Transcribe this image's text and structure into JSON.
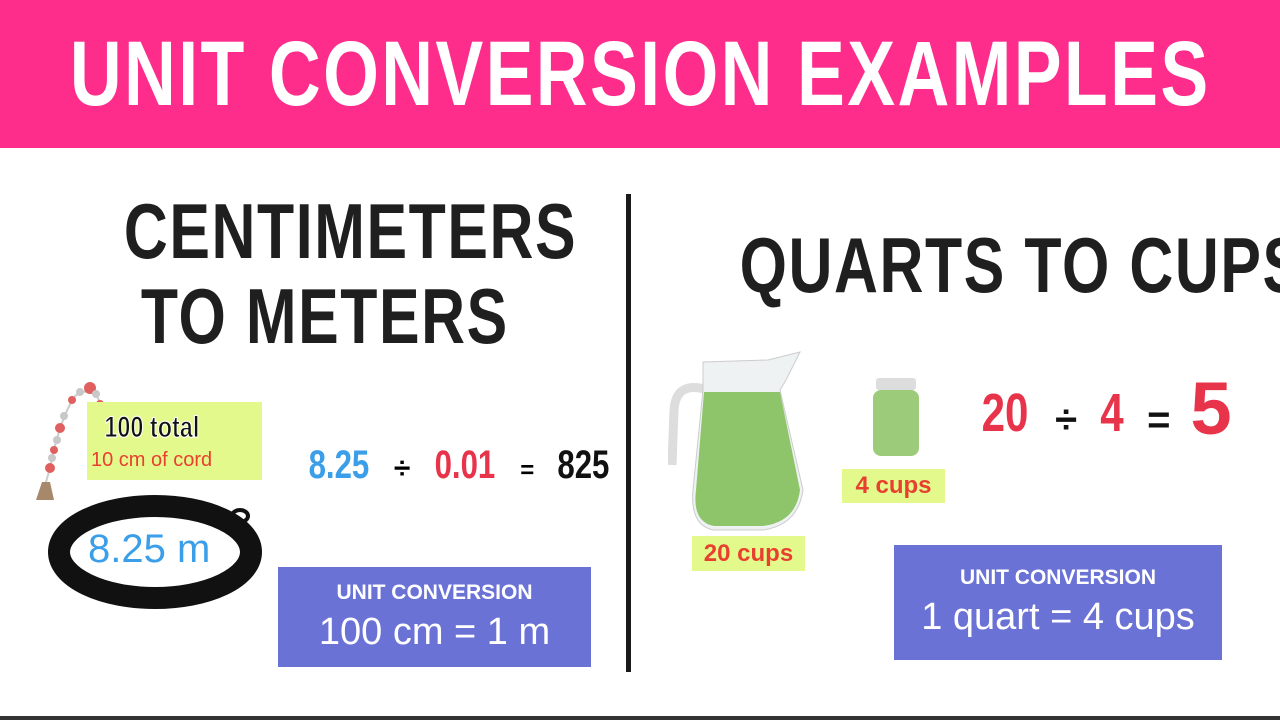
{
  "banner": {
    "title": "UNIT CONVERSION EXAMPLES",
    "color": "#fe2d8c"
  },
  "left": {
    "heading_line1": "CENTIMETERS",
    "heading_line2": "TO METERS",
    "bead_label_total": "100 total",
    "bead_label_cord": "10 cm of cord",
    "rope_label": "8.25 m",
    "equation": {
      "a": "8.25",
      "op": "÷",
      "b": "0.01",
      "eq": "=",
      "result": "825"
    },
    "box": {
      "title": "UNIT CONVERSION",
      "value": "100 cm = 1 m"
    }
  },
  "right": {
    "heading": "QUARTS TO CUPS",
    "pitcher_label": "20 cups",
    "jar_label": "4 cups",
    "equation": {
      "a": "20",
      "op": "÷",
      "b": "4",
      "eq": "=",
      "result": "5"
    },
    "box": {
      "title": "UNIT CONVERSION",
      "value": "1 quart = 4 cups"
    }
  },
  "colors": {
    "blue": "#3a9ee8",
    "red": "#e8344a",
    "box": "#6a72d6",
    "label_bg": "#e4f98c",
    "liquid": "#8fc56a"
  }
}
